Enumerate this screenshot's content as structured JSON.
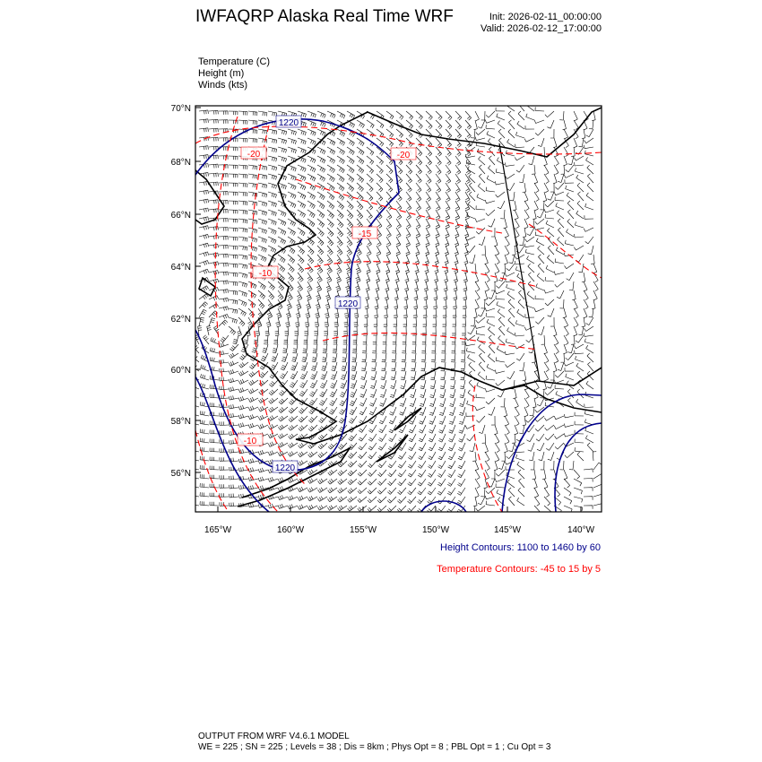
{
  "header": {
    "title": "IWFAQRP Alaska Real Time WRF",
    "init": "Init: 2026-02-11_00:00:00",
    "valid": "Valid: 2026-02-12_17:00:00"
  },
  "fields": [
    "Temperature   (C)",
    "Height   (m)",
    "Winds   (kts)"
  ],
  "map": {
    "lat_ticks": [
      "70°N",
      "68°N",
      "66°N",
      "64°N",
      "62°N",
      "60°N",
      "58°N",
      "56°N"
    ],
    "lon_ticks": [
      "165°W",
      "160°W",
      "155°W",
      "150°W",
      "145°W",
      "140°W"
    ],
    "height_labels": [
      "1220",
      "1220",
      "1220"
    ],
    "temp_labels": [
      "-20",
      "-20",
      "-15",
      "-10",
      "-10"
    ],
    "colors": {
      "height": "#00008b",
      "temperature": "#ff0000",
      "coast": "#000000",
      "barbs": "#000000"
    }
  },
  "legend": {
    "height": "Height Contours: 1100 to 1460 by 60",
    "temperature": "Temperature Contours: -45 to 15 by 5"
  },
  "footer": {
    "line1": "OUTPUT FROM WRF V4.6.1 MODEL",
    "line2": "WE = 225 ; SN = 225 ; Levels = 38 ; Dis = 8km ; Phys Opt = 8 ; PBL Opt = 1 ; Cu Opt = 3"
  }
}
